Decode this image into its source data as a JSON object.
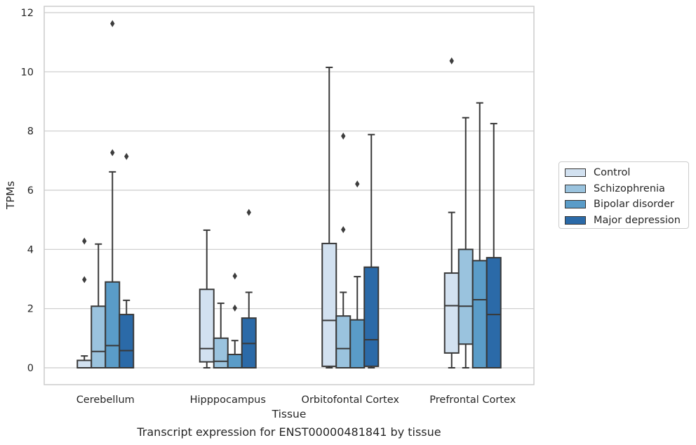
{
  "caption": "Transcript expression for ENST00000481841 by tissue",
  "chart_data": {
    "type": "box",
    "xlabel": "Tissue",
    "ylabel": "TPMs",
    "ylim": [
      -0.55,
      12.2
    ],
    "yticks": [
      0,
      2,
      4,
      6,
      8,
      10,
      12
    ],
    "grid": true,
    "legend_position": "right-center",
    "categories": [
      "Cerebellum",
      "Hipppocampus",
      "Orbitofontal Cortex",
      "Prefrontal Cortex"
    ],
    "series": [
      {
        "name": "Control",
        "color": "#d2e1f0",
        "boxes": [
          {
            "whislo": 0,
            "q1": 0,
            "med": 0,
            "q3": 0.25,
            "whishi": 0.4,
            "fliers": [
              2.98,
              4.28
            ]
          },
          {
            "whislo": 0,
            "q1": 0.2,
            "med": 0.65,
            "q3": 2.65,
            "whishi": 4.65,
            "fliers": []
          },
          {
            "whislo": 0,
            "q1": 0.05,
            "med": 1.6,
            "q3": 4.2,
            "whishi": 10.15,
            "fliers": []
          },
          {
            "whislo": 0,
            "q1": 0.5,
            "med": 2.1,
            "q3": 3.2,
            "whishi": 5.25,
            "fliers": [
              10.37
            ]
          }
        ]
      },
      {
        "name": "Schizophrenia",
        "color": "#9ac3de",
        "boxes": [
          {
            "whislo": 0,
            "q1": 0,
            "med": 0.55,
            "q3": 2.08,
            "whishi": 4.18,
            "fliers": []
          },
          {
            "whislo": 0,
            "q1": 0,
            "med": 0.22,
            "q3": 1.0,
            "whishi": 2.18,
            "fliers": []
          },
          {
            "whislo": 0,
            "q1": 0,
            "med": 0.65,
            "q3": 1.75,
            "whishi": 2.55,
            "fliers": [
              4.67,
              7.83
            ]
          },
          {
            "whislo": 0,
            "q1": 0.8,
            "med": 2.08,
            "q3": 4.0,
            "whishi": 8.45,
            "fliers": []
          }
        ]
      },
      {
        "name": "Bipolar disorder",
        "color": "#5a9cc8",
        "boxes": [
          {
            "whislo": 0,
            "q1": 0,
            "med": 0.75,
            "q3": 2.9,
            "whishi": 6.62,
            "fliers": [
              7.27,
              11.63
            ]
          },
          {
            "whislo": 0,
            "q1": 0,
            "med": 0,
            "q3": 0.45,
            "whishi": 0.92,
            "fliers": [
              2.02,
              3.1
            ]
          },
          {
            "whislo": 0,
            "q1": 0,
            "med": 0,
            "q3": 1.62,
            "whishi": 3.08,
            "fliers": [
              6.21
            ]
          },
          {
            "whislo": 0,
            "q1": 0,
            "med": 2.3,
            "q3": 3.62,
            "whishi": 8.95,
            "fliers": []
          }
        ]
      },
      {
        "name": "Major depression",
        "color": "#2b6aa8",
        "boxes": [
          {
            "whislo": 0,
            "q1": 0,
            "med": 0.58,
            "q3": 1.8,
            "whishi": 2.28,
            "fliers": [
              7.14
            ]
          },
          {
            "whislo": 0,
            "q1": 0,
            "med": 0.82,
            "q3": 1.68,
            "whishi": 2.55,
            "fliers": [
              5.25
            ]
          },
          {
            "whislo": 0,
            "q1": 0.05,
            "med": 0.95,
            "q3": 3.4,
            "whishi": 7.88,
            "fliers": []
          },
          {
            "whislo": 0,
            "q1": 0,
            "med": 1.8,
            "q3": 3.72,
            "whishi": 8.25,
            "fliers": []
          }
        ]
      }
    ]
  }
}
